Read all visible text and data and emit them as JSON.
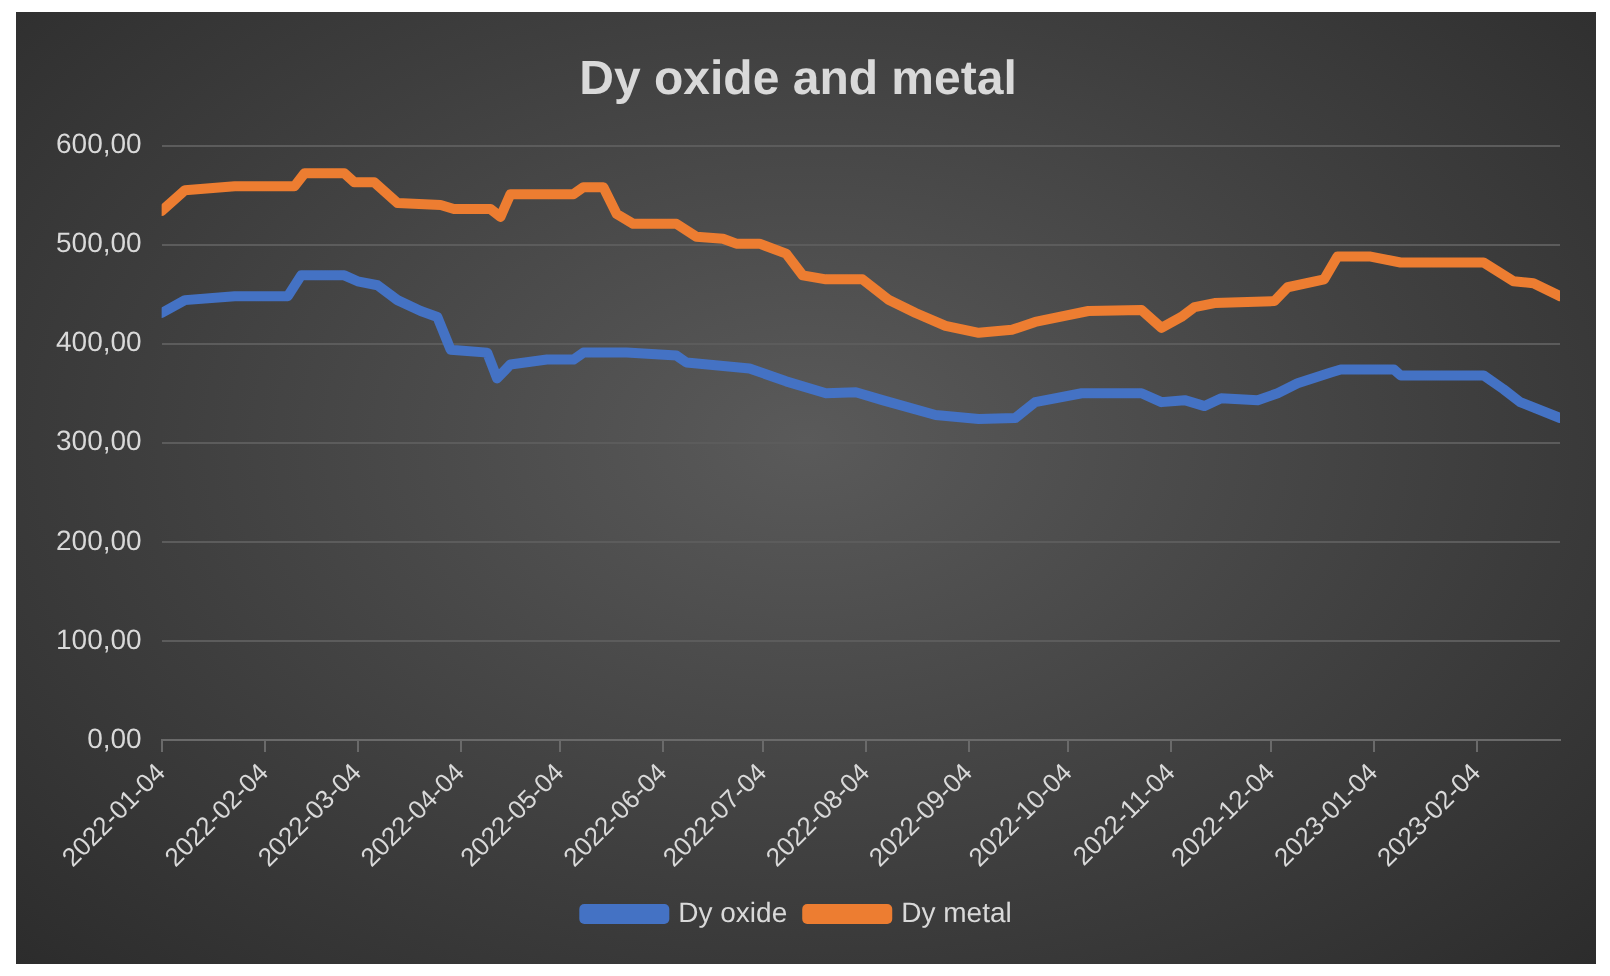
{
  "chart_data": {
    "type": "line",
    "title": "Dy oxide and metal",
    "ylim": [
      0,
      600
    ],
    "yticks": [
      {
        "value": 0,
        "label": "0,00"
      },
      {
        "value": 100,
        "label": "100,00"
      },
      {
        "value": 200,
        "label": "200,00"
      },
      {
        "value": 300,
        "label": "300,00"
      },
      {
        "value": 400,
        "label": "400,00"
      },
      {
        "value": 500,
        "label": "500,00"
      },
      {
        "value": 600,
        "label": "600,00"
      }
    ],
    "xlim": [
      "2022-01-04",
      "2023-03-01"
    ],
    "xticks": [
      "2022-01-04",
      "2022-02-04",
      "2022-03-04",
      "2022-04-04",
      "2022-05-04",
      "2022-06-04",
      "2022-07-04",
      "2022-08-04",
      "2022-09-04",
      "2022-10-04",
      "2022-11-04",
      "2022-12-04",
      "2023-01-04",
      "2023-02-04"
    ],
    "grid": "y",
    "legend": "bottom",
    "marker": "none",
    "line_style": "solid",
    "series": [
      {
        "name": "Dy oxide",
        "color": "#4472c4",
        "x": [
          "2022-01-04",
          "2022-01-11",
          "2022-01-26",
          "2022-02-11",
          "2022-02-15",
          "2022-02-28",
          "2022-03-04",
          "2022-03-10",
          "2022-03-16",
          "2022-03-23",
          "2022-03-28",
          "2022-04-01",
          "2022-04-12",
          "2022-04-15",
          "2022-04-19",
          "2022-04-30",
          "2022-05-08",
          "2022-05-11",
          "2022-05-24",
          "2022-06-08",
          "2022-06-11",
          "2022-06-30",
          "2022-07-11",
          "2022-07-23",
          "2022-08-01",
          "2022-08-09",
          "2022-08-25",
          "2022-09-07",
          "2022-09-18",
          "2022-09-24",
          "2022-10-08",
          "2022-10-26",
          "2022-11-01",
          "2022-11-08",
          "2022-11-14",
          "2022-11-19",
          "2022-11-30",
          "2022-12-06",
          "2022-12-12",
          "2022-12-22",
          "2022-12-25",
          "2023-01-10",
          "2023-01-12",
          "2023-02-06",
          "2023-02-12",
          "2023-02-17",
          "2023-03-01"
        ],
        "values": [
          431,
          444,
          448,
          448,
          469,
          469,
          463,
          459,
          444,
          433,
          427,
          394,
          391,
          365,
          379,
          384,
          384,
          391,
          391,
          388,
          381,
          375,
          362,
          350,
          351,
          343,
          328,
          324,
          325,
          341,
          350,
          350,
          341,
          343,
          337,
          345,
          343,
          350,
          360,
          371,
          374,
          374,
          368,
          368,
          354,
          341,
          325
        ]
      },
      {
        "name": "Dy metal",
        "color": "#ed7d31",
        "x": [
          "2022-01-04",
          "2022-01-11",
          "2022-01-26",
          "2022-02-13",
          "2022-02-16",
          "2022-02-28",
          "2022-03-03",
          "2022-03-09",
          "2022-03-16",
          "2022-03-29",
          "2022-04-02",
          "2022-04-13",
          "2022-04-16",
          "2022-04-19",
          "2022-05-08",
          "2022-05-11",
          "2022-05-17",
          "2022-05-21",
          "2022-05-26",
          "2022-06-08",
          "2022-06-14",
          "2022-06-22",
          "2022-06-26",
          "2022-07-03",
          "2022-07-11",
          "2022-07-16",
          "2022-07-23",
          "2022-08-03",
          "2022-08-11",
          "2022-08-19",
          "2022-08-28",
          "2022-09-07",
          "2022-09-17",
          "2022-09-24",
          "2022-10-10",
          "2022-10-26",
          "2022-11-01",
          "2022-11-07",
          "2022-11-11",
          "2022-11-17",
          "2022-12-05",
          "2022-12-09",
          "2022-12-20",
          "2022-12-24",
          "2023-01-03",
          "2023-01-12",
          "2023-02-06",
          "2023-02-15",
          "2023-02-21",
          "2023-03-01"
        ],
        "values": [
          534,
          555,
          559,
          559,
          572,
          572,
          563,
          563,
          542,
          540,
          536,
          536,
          528,
          551,
          551,
          558,
          558,
          531,
          521,
          521,
          508,
          506,
          501,
          501,
          491,
          469,
          465,
          465,
          444,
          431,
          418,
          411,
          414,
          422,
          433,
          434,
          416,
          427,
          437,
          441,
          443,
          457,
          465,
          488,
          488,
          482,
          482,
          463,
          461,
          448
        ]
      }
    ]
  }
}
